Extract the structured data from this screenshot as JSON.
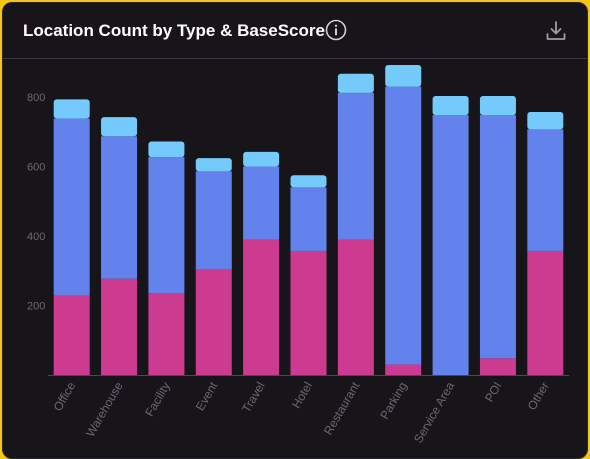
{
  "header": {
    "title": "Location Count by Type & BaseScore",
    "info_icon": "info-icon",
    "download_icon": "download-icon"
  },
  "colors": {
    "background": "#17151a",
    "low_score": "#cc3b90",
    "mid_score": "#6482ec",
    "high_score": "#74cbfb",
    "grid": "#4a4850",
    "tick": "#6b6870"
  },
  "chart_data": {
    "type": "bar",
    "stacked": true,
    "categories": [
      "Office",
      "Warehouse",
      "Facility",
      "Event",
      "Travel",
      "Hotel",
      "Restaurant",
      "Parking",
      "Service Area",
      "POI",
      "Other"
    ],
    "series": [
      {
        "color": "#cc3b90",
        "values": [
          228,
          277,
          235,
          303,
          390,
          357,
          390,
          30,
          0,
          48,
          357
        ]
      },
      {
        "color": "#6482ec",
        "values": [
          510,
          410,
          392,
          283,
          210,
          183,
          422,
          800,
          748,
          700,
          350
        ]
      },
      {
        "color": "#74cbfb",
        "values": [
          55,
          55,
          45,
          38,
          42,
          35,
          55,
          62,
          55,
          55,
          50
        ]
      }
    ],
    "y_ticks": [
      200,
      400,
      600,
      800
    ],
    "ylim": [
      0,
      900
    ],
    "legend": "none",
    "grid": false
  }
}
